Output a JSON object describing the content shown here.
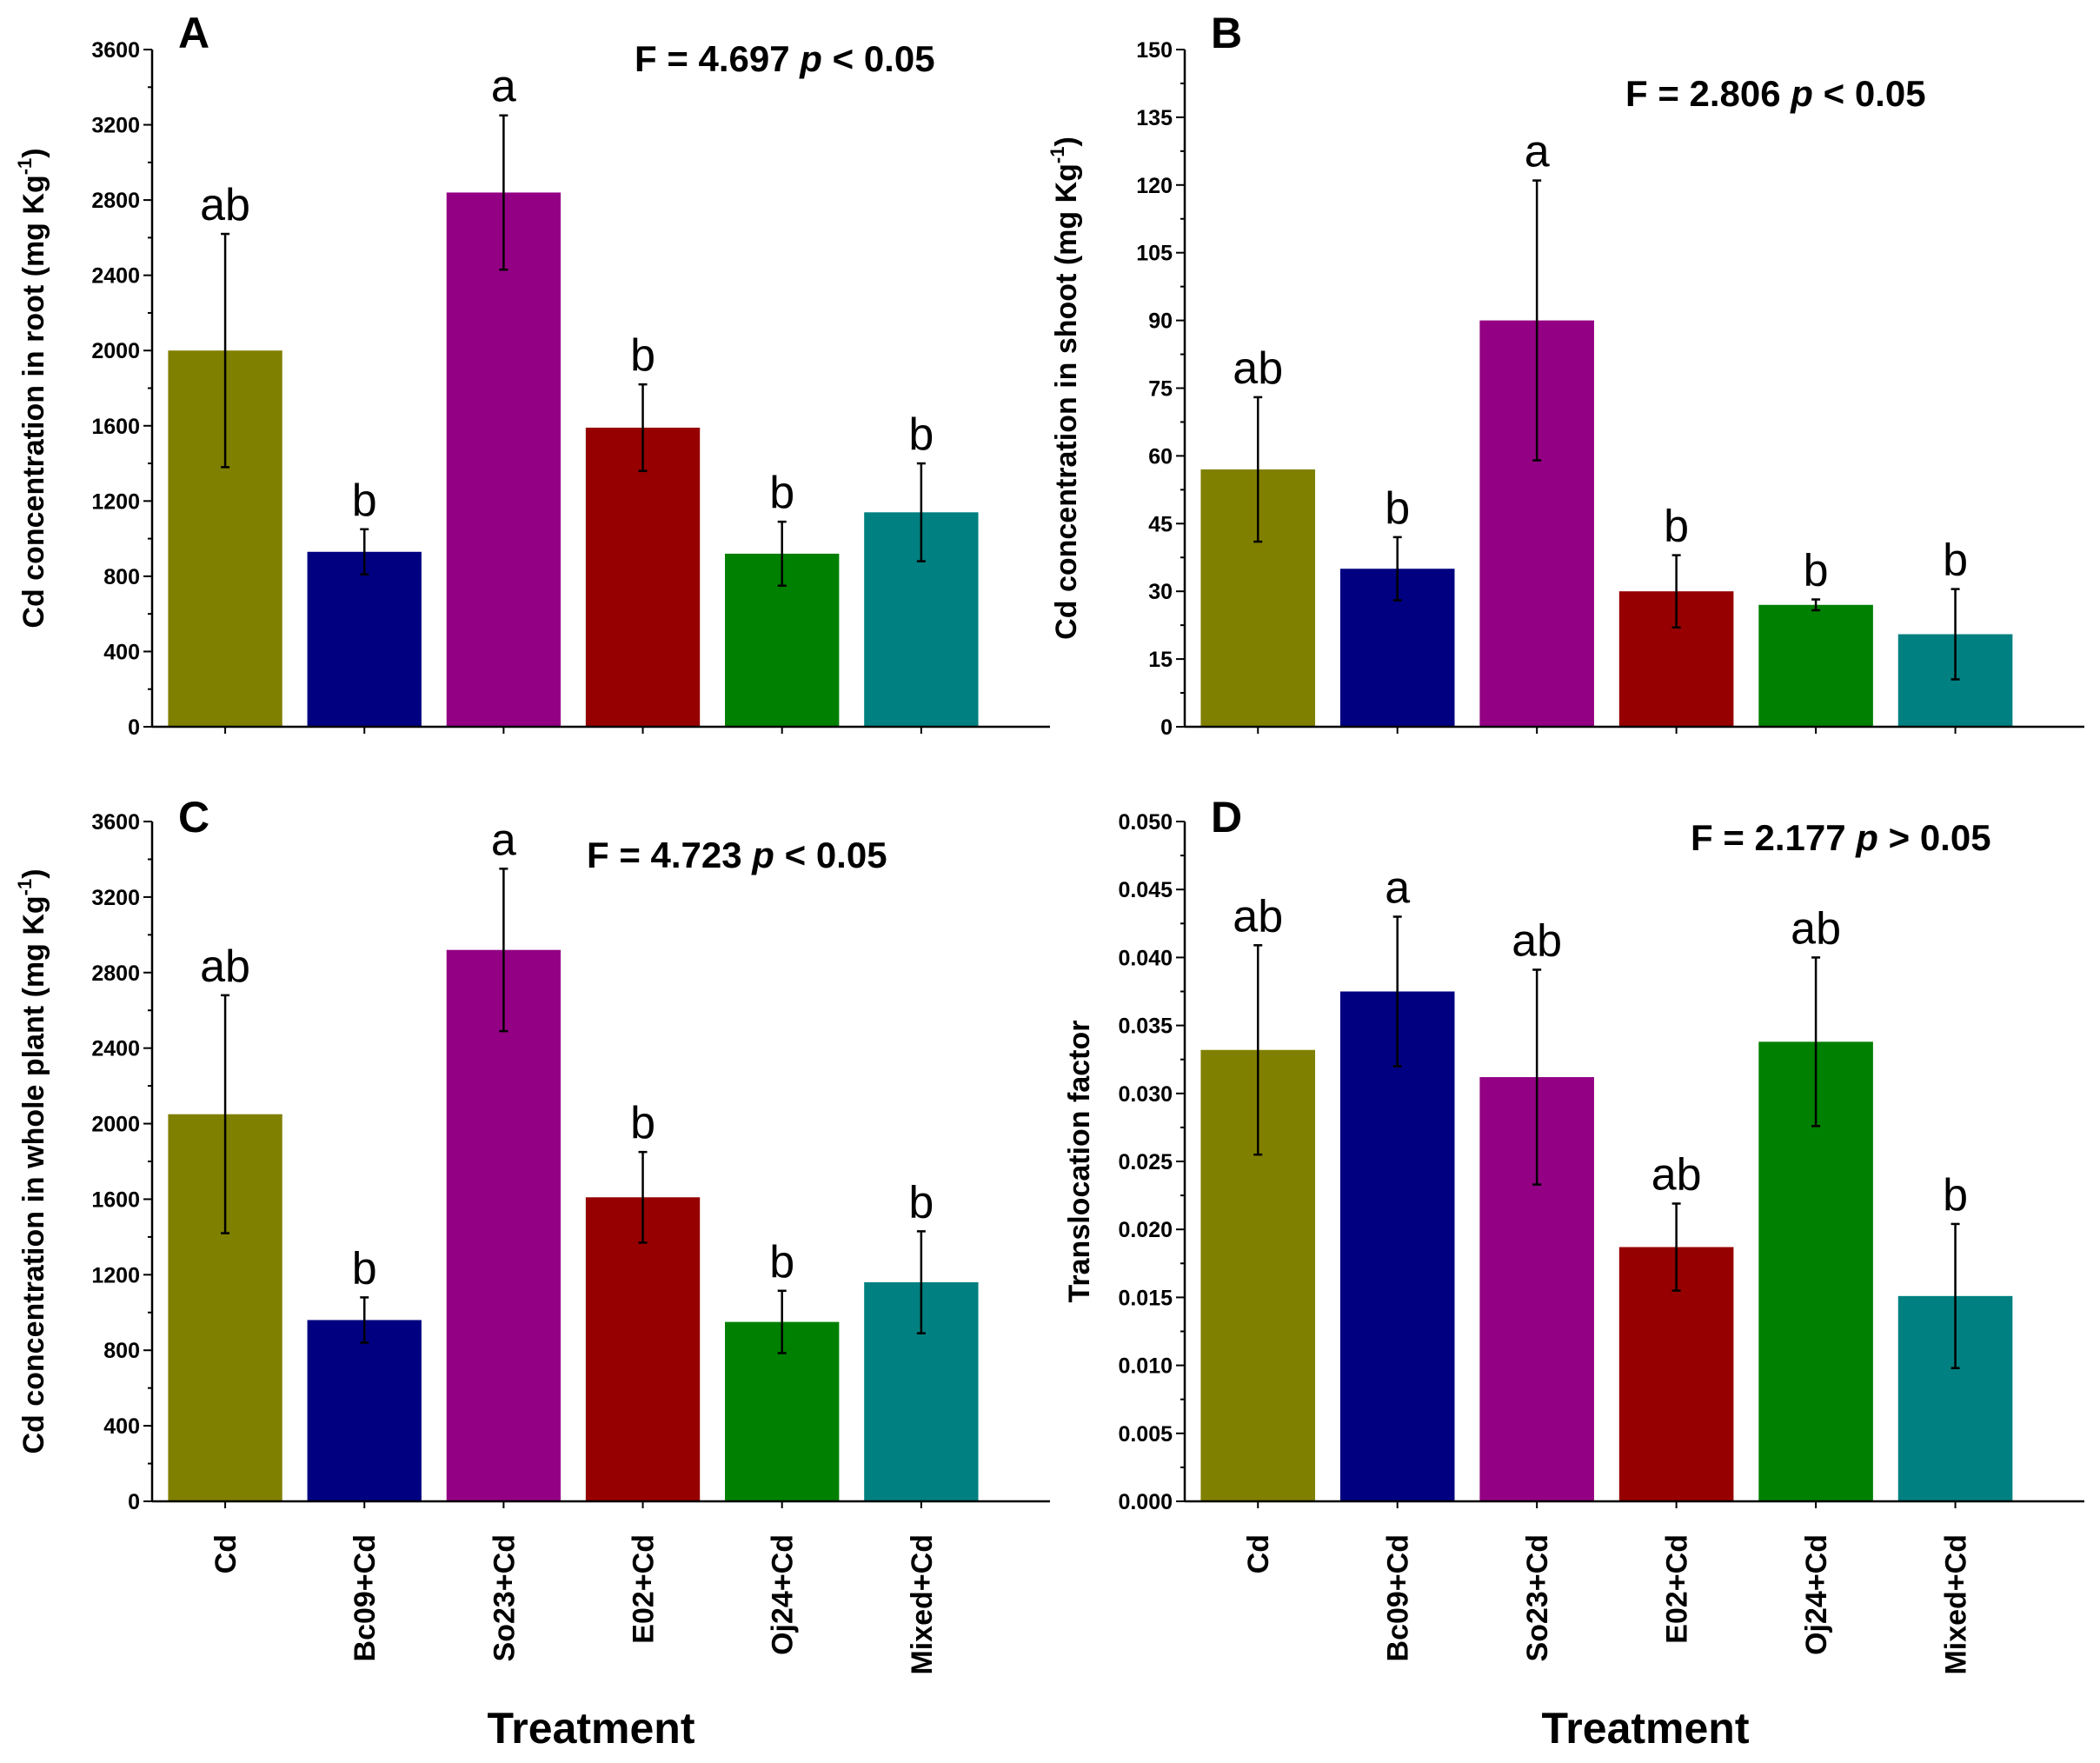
{
  "categories": [
    "Cd",
    "Bc09+Cd",
    "So23+Cd",
    "E02+Cd",
    "Oj24+Cd",
    "Mixed+Cd"
  ],
  "colors": [
    "#808000",
    "#000080",
    "#930083",
    "#960000",
    "#008000",
    "#008080"
  ],
  "xlabel": "Treatment",
  "chart_data": [
    {
      "type": "bar",
      "panel": "A",
      "stat_f": "F = 4.697 ",
      "stat_p": "p",
      "stat_rest": " < 0.05",
      "ylabel": "Cd concentration in root (mg Kg",
      "ylabel_sup": "-1",
      "ylabel_end": ")",
      "ylim": [
        0,
        3600
      ],
      "yticks": [
        "0",
        "400",
        "800",
        "1200",
        "1600",
        "2000",
        "2400",
        "2800",
        "3200",
        "3600"
      ],
      "values": [
        2000,
        930,
        2840,
        1590,
        920,
        1140
      ],
      "errors": [
        620,
        120,
        410,
        230,
        170,
        260
      ],
      "letters": [
        "ab",
        "b",
        "a",
        "b",
        "b",
        "b"
      ]
    },
    {
      "type": "bar",
      "panel": "B",
      "stat_f": "F = 2.806 ",
      "stat_p": "p",
      "stat_rest": " < 0.05",
      "ylabel": "Cd concentration in shoot (mg Kg",
      "ylabel_sup": "-1",
      "ylabel_end": ")",
      "ylim": [
        0,
        150
      ],
      "yticks": [
        "0",
        "15",
        "30",
        "45",
        "60",
        "75",
        "90",
        "105",
        "120",
        "135",
        "150"
      ],
      "values": [
        57,
        35,
        90,
        30,
        27,
        20.5
      ],
      "errors": [
        16,
        7,
        31,
        8,
        1.2,
        10
      ],
      "letters": [
        "ab",
        "b",
        "a",
        "b",
        "b",
        "b"
      ]
    },
    {
      "type": "bar",
      "panel": "C",
      "stat_f": "F = 4.723 ",
      "stat_p": "p",
      "stat_rest": " < 0.05",
      "ylabel": "Cd concentration in whole plant (mg Kg",
      "ylabel_sup": "-1",
      "ylabel_end": ")",
      "ylim": [
        0,
        3600
      ],
      "yticks": [
        "0",
        "400",
        "800",
        "1200",
        "1600",
        "2000",
        "2400",
        "2800",
        "3200",
        "3600"
      ],
      "values": [
        2050,
        960,
        2920,
        1610,
        950,
        1160
      ],
      "errors": [
        630,
        120,
        430,
        240,
        165,
        270
      ],
      "letters": [
        "ab",
        "b",
        "a",
        "b",
        "b",
        "b"
      ]
    },
    {
      "type": "bar",
      "panel": "D",
      "stat_f": "F = 2.177 ",
      "stat_p": "p",
      "stat_rest": " > 0.05",
      "ylabel": "Translocation factor",
      "ylabel_sup": "",
      "ylabel_end": "",
      "ylim": [
        0,
        0.05
      ],
      "yticks": [
        "0.000",
        "0.005",
        "0.010",
        "0.015",
        "0.020",
        "0.025",
        "0.030",
        "0.035",
        "0.040",
        "0.045",
        "0.050"
      ],
      "values": [
        0.0332,
        0.0375,
        0.0312,
        0.0187,
        0.0338,
        0.0151
      ],
      "errors": [
        0.0077,
        0.0055,
        0.0079,
        0.0032,
        0.0062,
        0.0053
      ],
      "letters": [
        "ab",
        "a",
        "ab",
        "ab",
        "ab",
        "b"
      ]
    }
  ]
}
